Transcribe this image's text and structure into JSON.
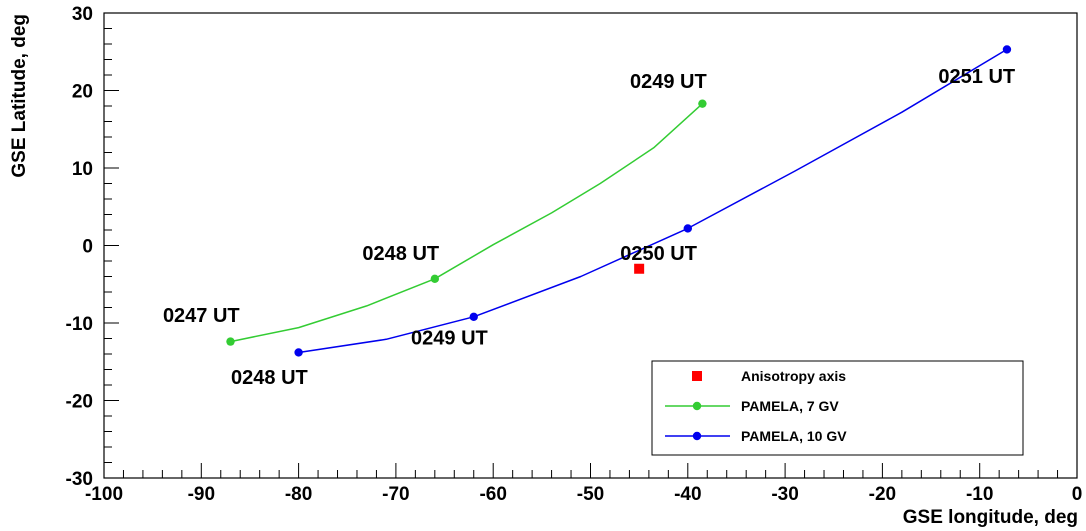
{
  "chart_data": {
    "type": "scatter",
    "title": "",
    "xlabel": "GSE longitude, deg",
    "ylabel": "GSE Latitude, deg",
    "xlim": [
      -100,
      0
    ],
    "ylim": [
      -30,
      30
    ],
    "xticks": [
      -100,
      -90,
      -80,
      -70,
      -60,
      -50,
      -40,
      -30,
      -20,
      -10,
      0
    ],
    "yticks": [
      -30,
      -20,
      -10,
      0,
      10,
      20,
      30
    ],
    "grid": false,
    "legend_position": "bottom-right",
    "series": [
      {
        "name": "Anisotropy axis",
        "color": "#ff0000",
        "marker": "square",
        "line": false,
        "points": [
          [
            -45,
            -3
          ]
        ]
      },
      {
        "name": "PAMELA, 7 GV",
        "color": "#33cc33",
        "marker": "circle",
        "line": true,
        "points": [
          [
            -87,
            -12.4
          ],
          [
            -66,
            -4.3
          ],
          [
            -38.5,
            18.3
          ]
        ],
        "curve": [
          [
            -87,
            -12.4
          ],
          [
            -80,
            -10.6
          ],
          [
            -73,
            -7.8
          ],
          [
            -66,
            -4.3
          ],
          [
            -60,
            0.1
          ],
          [
            -54,
            4.2
          ],
          [
            -49,
            8
          ],
          [
            -43.5,
            12.6
          ],
          [
            -38.5,
            18.3
          ]
        ]
      },
      {
        "name": "PAMELA, 10 GV",
        "color": "#0000ee",
        "marker": "circle",
        "line": true,
        "points": [
          [
            -80,
            -13.8
          ],
          [
            -62,
            -9.2
          ],
          [
            -40,
            2.2
          ],
          [
            -7.2,
            25.3
          ]
        ],
        "curve": [
          [
            -80,
            -13.8
          ],
          [
            -71,
            -12.1
          ],
          [
            -62,
            -9.2
          ],
          [
            -51,
            -4
          ],
          [
            -40,
            2.2
          ],
          [
            -29,
            9.6
          ],
          [
            -18,
            17.2
          ],
          [
            -7.2,
            25.3
          ]
        ]
      }
    ],
    "annotations": [
      {
        "text": "0247 UT",
        "x": -90,
        "y": -9.9
      },
      {
        "text": "0248 UT",
        "x": -69.5,
        "y": -1.9
      },
      {
        "text": "0249 UT",
        "x": -42,
        "y": 20.3
      },
      {
        "text": "0248 UT",
        "x": -83,
        "y": -17.9
      },
      {
        "text": "0249 UT",
        "x": -64.5,
        "y": -12.8
      },
      {
        "text": "0250 UT",
        "x": -43,
        "y": -1.9
      },
      {
        "text": "0251 UT",
        "x": -10.3,
        "y": 21
      }
    ]
  }
}
